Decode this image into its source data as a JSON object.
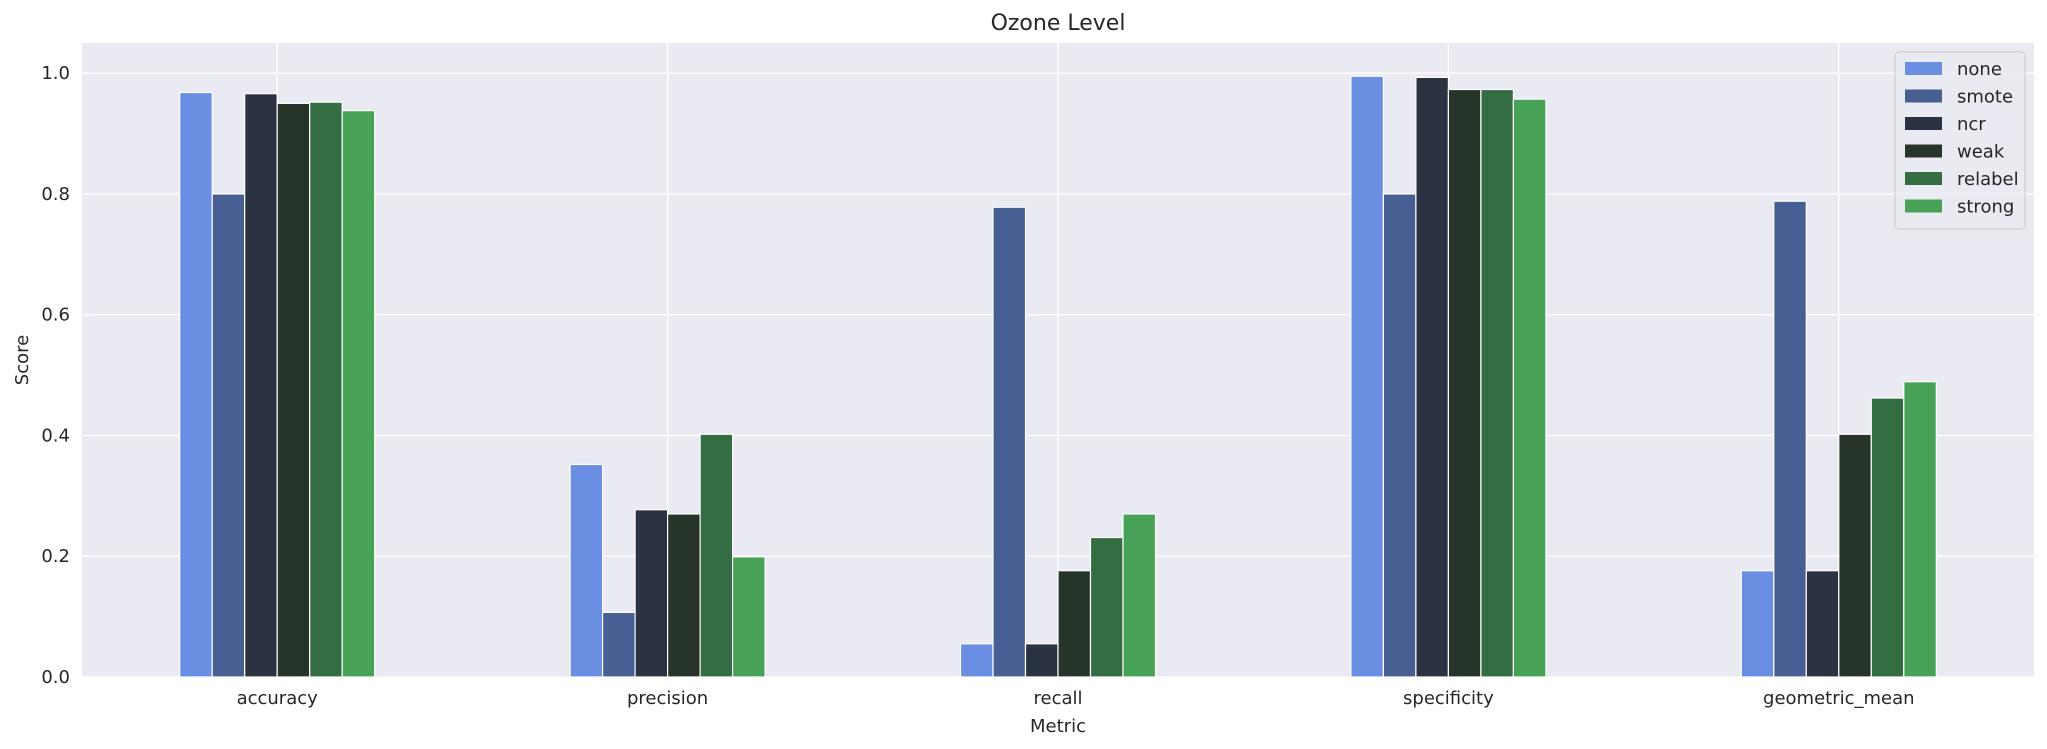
{
  "chart_data": {
    "type": "bar",
    "title": "Ozone Level",
    "xlabel": "Metric",
    "ylabel": "Score",
    "ylim": [
      0,
      1.05
    ],
    "yticks": [
      0.0,
      0.2,
      0.4,
      0.6,
      0.8,
      1.0
    ],
    "ytick_labels": [
      "0.0",
      "0.2",
      "0.4",
      "0.6",
      "0.8",
      "1.0"
    ],
    "categories": [
      "accuracy",
      "precision",
      "recall",
      "specificity",
      "geometric_mean"
    ],
    "grid": true,
    "legend_position": "top-right",
    "series": [
      {
        "name": "none",
        "color": "#6a8fe2",
        "values": [
          0.968,
          0.352,
          0.055,
          0.995,
          0.176
        ]
      },
      {
        "name": "smote",
        "color": "#485f93",
        "values": [
          0.8,
          0.107,
          0.778,
          0.8,
          0.788
        ]
      },
      {
        "name": "ncr",
        "color": "#2b3241",
        "values": [
          0.966,
          0.277,
          0.055,
          0.993,
          0.176
        ]
      },
      {
        "name": "weak",
        "color": "#263429",
        "values": [
          0.95,
          0.27,
          0.176,
          0.973,
          0.402
        ]
      },
      {
        "name": "relabel",
        "color": "#356d42",
        "values": [
          0.952,
          0.402,
          0.231,
          0.973,
          0.462
        ]
      },
      {
        "name": "strong",
        "color": "#47a258",
        "values": [
          0.938,
          0.199,
          0.27,
          0.957,
          0.489
        ]
      }
    ]
  }
}
